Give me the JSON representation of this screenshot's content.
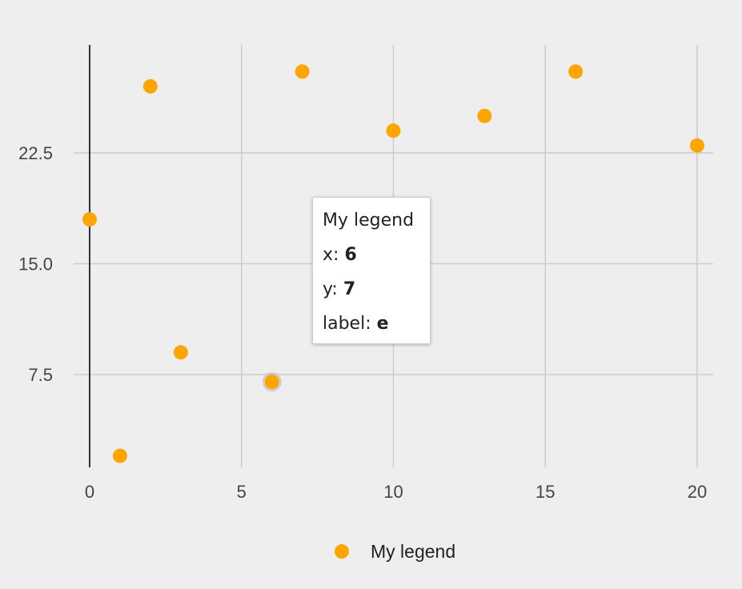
{
  "chart_data": {
    "type": "scatter",
    "title": "",
    "xlabel": "",
    "ylabel": "",
    "xlim": [
      0,
      20
    ],
    "ylim": [
      2,
      29
    ],
    "x_ticks": [
      0,
      5,
      10,
      15,
      20
    ],
    "x_tick_labels": [
      "0",
      "5",
      "10",
      "15",
      "20"
    ],
    "y_ticks": [
      7.5,
      15,
      22.5
    ],
    "y_tick_labels": [
      "7.5",
      "15.0",
      "22.5"
    ],
    "grid": true,
    "legend_position": "bottom",
    "series": [
      {
        "name": "My legend",
        "color": "#ffa500",
        "points": [
          {
            "x": 0,
            "y": 18
          },
          {
            "x": 1,
            "y": 2
          },
          {
            "x": 2,
            "y": 27
          },
          {
            "x": 3,
            "y": 9
          },
          {
            "x": 6,
            "y": 7,
            "label": "e"
          },
          {
            "x": 7,
            "y": 28
          },
          {
            "x": 10,
            "y": 24
          },
          {
            "x": 13,
            "y": 25
          },
          {
            "x": 16,
            "y": 28
          },
          {
            "x": 20,
            "y": 23
          }
        ]
      }
    ]
  },
  "tooltip": {
    "series_name": "My legend",
    "x_label": "x: ",
    "x_value": "6",
    "y_label": "y: ",
    "y_value": "7",
    "label_label": "label: ",
    "label_value": "e"
  },
  "legend": {
    "label": "My legend",
    "color": "#ffa500"
  }
}
